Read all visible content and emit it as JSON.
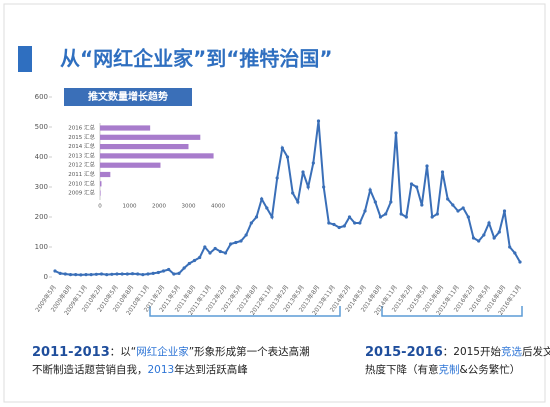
{
  "title": "从“网红企业家”到“推特治国”",
  "chart_data": [
    {
      "type": "line",
      "color": "#3a6fb8",
      "categories": [
        "2009年5月",
        null,
        null,
        "2009年8月",
        null,
        null,
        "2009年11月",
        null,
        null,
        "2010年2月",
        null,
        null,
        "2010年5月",
        null,
        null,
        "2010年8月",
        null,
        null,
        "2010年11月",
        null,
        null,
        "2011年2月",
        null,
        null,
        "2011年5月",
        null,
        null,
        "2011年8月",
        null,
        null,
        "2011年11月",
        null,
        null,
        "2012年2月",
        null,
        null,
        "2012年5月",
        null,
        null,
        "2012年8月",
        null,
        null,
        "2012年11月",
        null,
        null,
        "2013年2月",
        null,
        null,
        "2013年5月",
        null,
        null,
        "2013年8月",
        null,
        null,
        "2013年11月",
        null,
        null,
        "2014年2月",
        null,
        null,
        "2014年5月",
        null,
        null,
        "2014年8月",
        null,
        null,
        "2014年11月",
        null,
        null,
        "2015年2月",
        null,
        null,
        "2015年5月",
        null,
        null,
        "2015年8月",
        null,
        null,
        "2015年11月",
        null,
        null,
        "2016年2月",
        null,
        null,
        "2016年5月",
        null,
        null,
        "2016年8月",
        null,
        null,
        "2016年11月"
      ],
      "values": [
        20,
        12,
        10,
        8,
        8,
        7,
        8,
        8,
        9,
        10,
        8,
        9,
        10,
        10,
        10,
        11,
        10,
        8,
        10,
        12,
        15,
        20,
        25,
        10,
        12,
        30,
        45,
        55,
        65,
        100,
        80,
        95,
        85,
        80,
        110,
        115,
        120,
        140,
        180,
        200,
        260,
        230,
        200,
        330,
        430,
        400,
        280,
        250,
        350,
        300,
        380,
        520,
        300,
        180,
        175,
        165,
        170,
        200,
        180,
        180,
        220,
        290,
        250,
        200,
        210,
        250,
        480,
        210,
        200,
        310,
        300,
        240,
        370,
        200,
        210,
        350,
        260,
        240,
        220,
        230,
        200,
        130,
        120,
        140,
        180,
        130,
        150,
        220,
        100,
        80,
        50
      ],
      "ylim": [
        0,
        600
      ],
      "yticks": [
        0,
        100,
        200,
        300,
        400,
        500,
        600
      ]
    },
    {
      "type": "bar",
      "title": "推文数量增长趋势",
      "color": "#a87ccc",
      "categories": [
        "2016 汇总",
        "2015 汇总",
        "2014 汇总",
        "2013 汇总",
        "2012 汇总",
        "2011 汇总",
        "2010 汇总",
        "2009 汇总"
      ],
      "values": [
        1700,
        3400,
        3000,
        3850,
        2050,
        350,
        50,
        20
      ],
      "xlim": [
        0,
        4000
      ],
      "xticks": [
        0,
        1000,
        2000,
        3000,
        4000
      ]
    }
  ],
  "notes": [
    {
      "lines": [
        [
          {
            "text": "2011-2013",
            "color": "#1f4e9c",
            "bold": true
          },
          {
            "text": "：以“"
          },
          {
            "text": "网红企业家",
            "color": "#2e75d6"
          },
          {
            "text": "”形象形成第一个表达高潮"
          }
        ],
        [
          {
            "text": "不断制造话题营销自我，"
          },
          {
            "text": "2013",
            "color": "#2e75d6"
          },
          {
            "text": "年达到活跃高峰"
          }
        ]
      ]
    },
    {
      "lines": [
        [
          {
            "text": "2015-2016",
            "color": "#1f4e9c",
            "bold": true
          },
          {
            "text": "：2015开始"
          },
          {
            "text": "竞选",
            "color": "#2e75d6"
          },
          {
            "text": "后发文"
          }
        ],
        [
          {
            "text": "热度下降（有意"
          },
          {
            "text": "克制",
            "color": "#2e75d6"
          },
          {
            "text": "&公务繁忙）"
          }
        ]
      ]
    }
  ]
}
